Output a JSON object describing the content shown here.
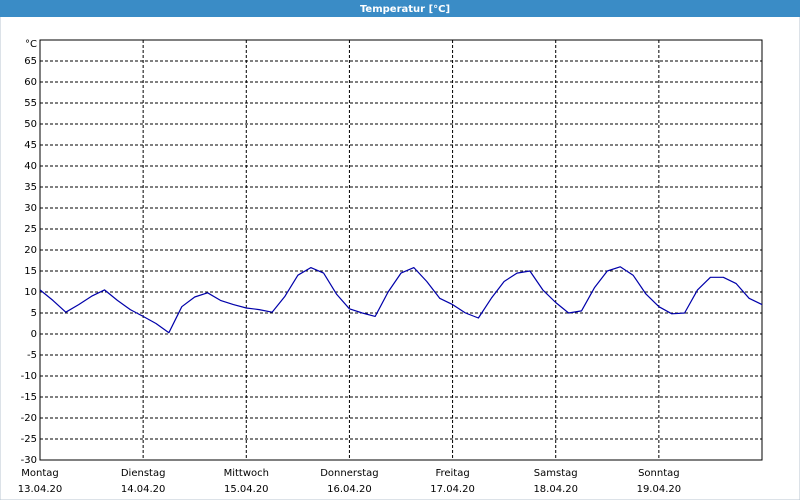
{
  "chart_data": {
    "type": "line",
    "title": "Temperatur [°C]",
    "ylabel": "°C",
    "color": "#0000aa",
    "grid": true,
    "xlim": [
      0,
      168
    ],
    "xticks": [
      {
        "value": 0,
        "label": "Montag",
        "date": "13.04.20"
      },
      {
        "value": 24,
        "label": "Dienstag",
        "date": "14.04.20"
      },
      {
        "value": 48,
        "label": "Mittwoch",
        "date": "15.04.20"
      },
      {
        "value": 72,
        "label": "Donnerstag",
        "date": "16.04.20"
      },
      {
        "value": 96,
        "label": "Freitag",
        "date": "17.04.20"
      },
      {
        "value": 120,
        "label": "Samstag",
        "date": "18.04.20"
      },
      {
        "value": 144,
        "label": "Sonntag",
        "date": "19.04.20"
      }
    ],
    "ylim": [
      -30,
      70
    ],
    "yticks": [
      -30,
      -25,
      -20,
      -15,
      -10,
      -5,
      0,
      5,
      10,
      15,
      20,
      25,
      30,
      35,
      40,
      45,
      50,
      55,
      60,
      65
    ],
    "x": [
      0,
      3,
      6,
      9,
      12,
      15,
      18,
      21,
      24,
      27,
      30,
      33,
      36,
      39,
      42,
      45,
      48,
      51,
      54,
      57,
      60,
      63,
      66,
      69,
      72,
      75,
      78,
      81,
      84,
      87,
      90,
      93,
      96,
      99,
      102,
      105,
      108,
      111,
      114,
      117,
      120,
      123,
      126,
      129,
      132,
      135,
      138,
      141,
      144,
      147,
      150,
      153,
      156,
      159,
      162,
      165,
      168
    ],
    "values": [
      10.5,
      8,
      5.2,
      7,
      9,
      10.5,
      8,
      5.8,
      4.2,
      2.5,
      0.3,
      6.5,
      8.8,
      9.8,
      8,
      7,
      6.2,
      5.8,
      5.2,
      9,
      14,
      15.8,
      14.5,
      9.5,
      6,
      5,
      4.2,
      10,
      14.5,
      15.8,
      12.5,
      8.5,
      7,
      5,
      3.8,
      8.5,
      12.5,
      14.5,
      15,
      10.5,
      7.5,
      5,
      5.5,
      11,
      15,
      16,
      14,
      9.5,
      6.5,
      4.8,
      5,
      10.5,
      13.5,
      13.5,
      12,
      8.5,
      7
    ]
  }
}
